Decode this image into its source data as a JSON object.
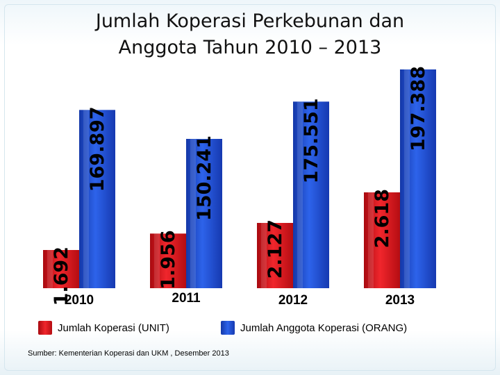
{
  "title_line1": "Jumlah Koperasi Perkebunan dan",
  "title_line2": "Anggota Tahun 2010 – 2013",
  "source": "Sumber: Kementerian Koperasi dan UKM , Desember 2013",
  "colors": {
    "koperasi": "#e8121a",
    "anggota": "#1f4fd6"
  },
  "chart_data": {
    "type": "bar",
    "categories": [
      "2010",
      "2011",
      "2012",
      "2013"
    ],
    "series": [
      {
        "name": "Jumlah Koperasi (UNIT)",
        "values": [
          1692,
          1956,
          2127,
          2618
        ],
        "labels": [
          "1.692",
          "1.956",
          "2.127",
          "2.618"
        ]
      },
      {
        "name": "Jumlah Anggota Koperasi (ORANG)",
        "values": [
          169897,
          150241,
          175551,
          197388
        ],
        "labels": [
          "169.897",
          "150.241",
          "175.551",
          "197.388"
        ]
      }
    ],
    "legend_position": "bottom",
    "grid": false
  }
}
